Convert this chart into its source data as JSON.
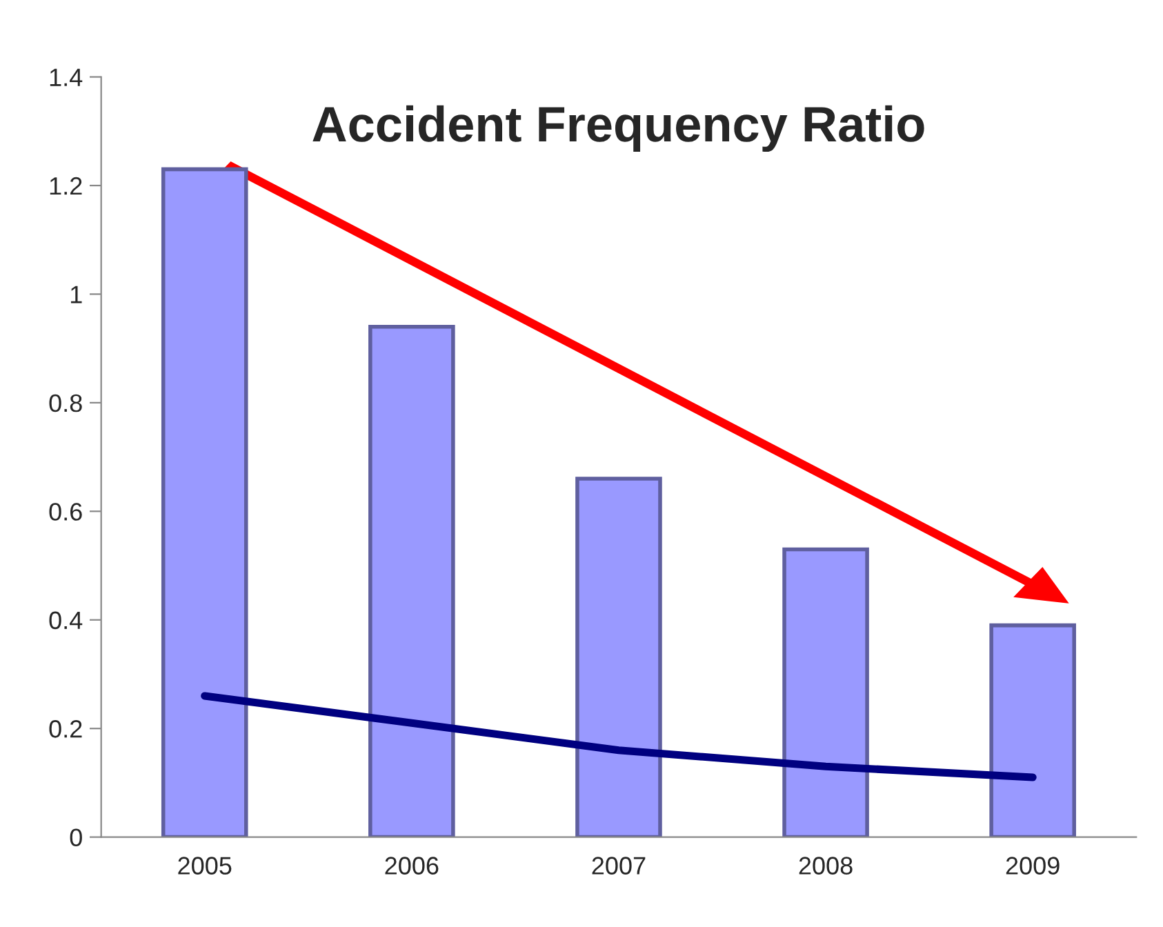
{
  "chart_data": {
    "type": "bar",
    "title": "Accident Frequency Ratio",
    "categories": [
      "2005",
      "2006",
      "2007",
      "2008",
      "2009"
    ],
    "series": [
      {
        "color": "#9999ff",
        "values": [
          1.23,
          0.94,
          0.66,
          0.53,
          0.39
        ]
      },
      {
        "type": "line",
        "color": "#000080",
        "values": [
          0.26,
          0.21,
          0.16,
          0.13,
          0.11
        ]
      }
    ],
    "ylim": [
      0,
      1.4
    ],
    "yticks": [
      0,
      0.2,
      0.4,
      0.6,
      0.8,
      1,
      1.2,
      1.4
    ],
    "grid": false,
    "legend": false,
    "marker": "none",
    "line_style": "solid"
  }
}
